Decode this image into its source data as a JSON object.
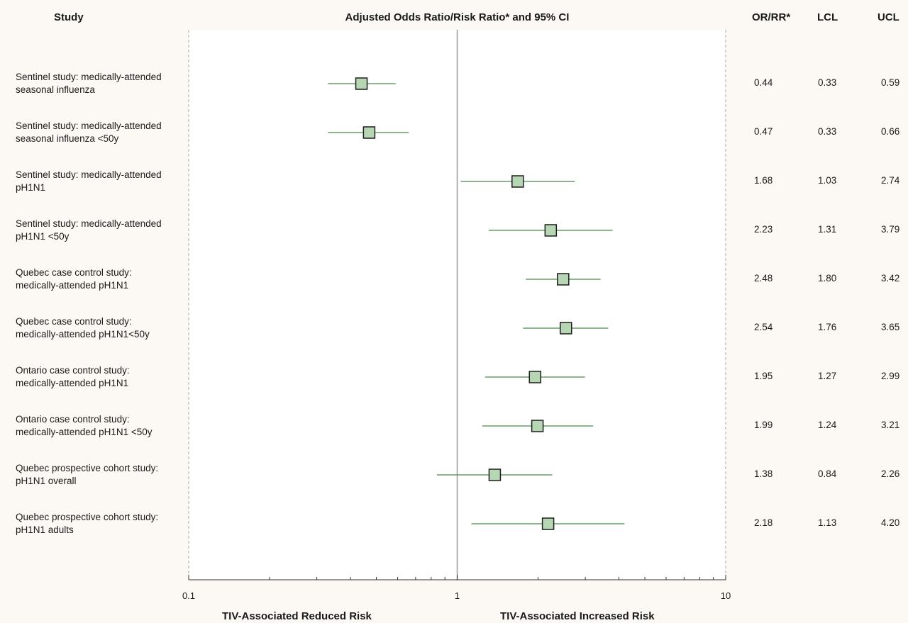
{
  "headers": {
    "study": "Study",
    "plot": "Adjusted Odds Ratio/Risk Ratio* and 95% CI",
    "or": "OR/RR*",
    "lcl": "LCL",
    "ucl": "UCL"
  },
  "footer": {
    "left": "TIV-Associated Reduced Risk",
    "right": "TIV-Associated Increased Risk"
  },
  "colors": {
    "marker_fill": "#b6d6b4",
    "marker_stroke": "#1e1e1e",
    "ci_line": "#4a8a4a",
    "ref_line": "#999999",
    "background": "#fcf9f4"
  },
  "chart_data": {
    "type": "forest",
    "x_scale": "log",
    "xlim": [
      0.1,
      10
    ],
    "x_ticks": [
      "0.1",
      "1",
      "10"
    ],
    "reference_value": 1,
    "rows": [
      {
        "label": "Sentinel study: medically-attended\nseasonal influenza",
        "or": "0.44",
        "lcl": "0.33",
        "ucl": "0.59"
      },
      {
        "label": "Sentinel study: medically-attended\nseasonal influenza <50y",
        "or": "0.47",
        "lcl": "0.33",
        "ucl": "0.66"
      },
      {
        "label": "Sentinel study: medically-attended\npH1N1",
        "or": "1.68",
        "lcl": "1.03",
        "ucl": "2.74"
      },
      {
        "label": "Sentinel study: medically-attended\npH1N1 <50y",
        "or": "2.23",
        "lcl": "1.31",
        "ucl": "3.79"
      },
      {
        "label": "Quebec case control study:\nmedically-attended pH1N1",
        "or": "2.48",
        "lcl": "1.80",
        "ucl": "3.42"
      },
      {
        "label": "Quebec case control study:\nmedically-attended pH1N1<50y",
        "or": "2.54",
        "lcl": "1.76",
        "ucl": "3.65"
      },
      {
        "label": "Ontario case control study:\nmedically-attended pH1N1",
        "or": "1.95",
        "lcl": "1.27",
        "ucl": "2.99"
      },
      {
        "label": "Ontario case control study:\nmedically-attended pH1N1 <50y",
        "or": "1.99",
        "lcl": "1.24",
        "ucl": "3.21"
      },
      {
        "label": "Quebec prospective cohort study:\n pH1N1 overall",
        "or": "1.38",
        "lcl": "0.84",
        "ucl": "2.26"
      },
      {
        "label": "Quebec prospective cohort study:\n pH1N1 adults",
        "or": "2.18",
        "lcl": "1.13",
        "ucl": "4.20"
      }
    ]
  }
}
